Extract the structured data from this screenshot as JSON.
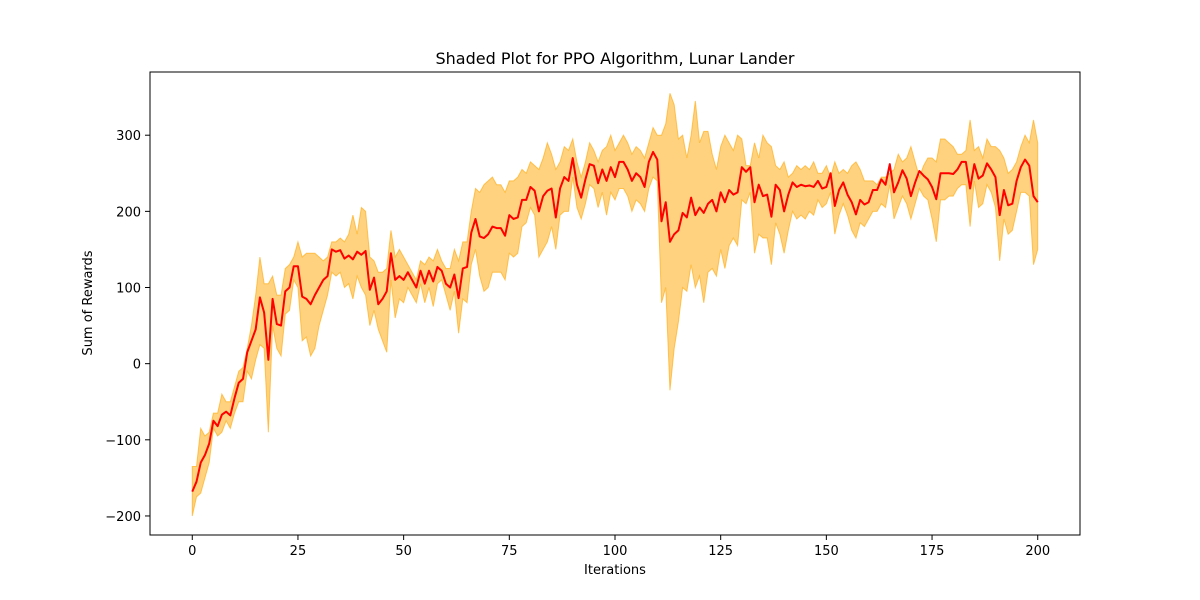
{
  "chart_data": {
    "type": "line",
    "title": "Shaded Plot for PPO Algorithm, Lunar Lander",
    "xlabel": "Iterations",
    "ylabel": "Sum of Rewards",
    "xlim": [
      -10,
      210
    ],
    "ylim": [
      -225,
      383
    ],
    "xticks": [
      0,
      25,
      50,
      75,
      100,
      125,
      150,
      175,
      200
    ],
    "yticks": [
      -200,
      -100,
      0,
      100,
      200,
      300
    ],
    "xtick_labels": [
      "0",
      "25",
      "50",
      "75",
      "100",
      "125",
      "150",
      "175",
      "200"
    ],
    "ytick_labels": [
      "−200",
      "−100",
      "0",
      "100",
      "200",
      "300"
    ],
    "grid": false,
    "colors": {
      "line": "#ff0000",
      "band": "#ffa500",
      "band_opacity": 0.5,
      "frame": "#000000"
    },
    "series": [
      {
        "kind": "mean",
        "x_start": 0,
        "x_step": 1,
        "values": [
          -168,
          -155,
          -130,
          -120,
          -105,
          -75,
          -82,
          -67,
          -63,
          -68,
          -45,
          -25,
          -20,
          15,
          30,
          45,
          87,
          67,
          5,
          85,
          52,
          50,
          95,
          100,
          128,
          128,
          88,
          85,
          78,
          90,
          100,
          110,
          115,
          150,
          147,
          149,
          138,
          142,
          137,
          147,
          143,
          148,
          97,
          113,
          78,
          85,
          95,
          145,
          110,
          115,
          110,
          120,
          110,
          100,
          122,
          105,
          122,
          108,
          127,
          122,
          105,
          100,
          117,
          86,
          125,
          127,
          172,
          190,
          167,
          165,
          170,
          180,
          178,
          178,
          168,
          195,
          190,
          192,
          215,
          215,
          232,
          227,
          200,
          220,
          227,
          230,
          192,
          230,
          245,
          240,
          270,
          235,
          218,
          242,
          262,
          260,
          237,
          255,
          240,
          258,
          245,
          265,
          265,
          255,
          240,
          250,
          245,
          232,
          265,
          278,
          268,
          187,
          212,
          160,
          170,
          175,
          198,
          192,
          218,
          195,
          205,
          198,
          210,
          215,
          200,
          225,
          212,
          228,
          222,
          225,
          258,
          252,
          258,
          212,
          235,
          220,
          222,
          193,
          235,
          228,
          200,
          222,
          238,
          232,
          235,
          233,
          234,
          232,
          240,
          230,
          232,
          250,
          207,
          228,
          238,
          222,
          212,
          196,
          215,
          209,
          212,
          228,
          228,
          242,
          235,
          262,
          225,
          238,
          254,
          243,
          220,
          238,
          253,
          247,
          242,
          232,
          216,
          250,
          250,
          250,
          249,
          255,
          265,
          265,
          230,
          262,
          243,
          247,
          263,
          255,
          245,
          195,
          228,
          208,
          210,
          240,
          258,
          268,
          260,
          220,
          212
        ]
      },
      {
        "kind": "upper",
        "x_start": 0,
        "x_step": 1,
        "values": [
          -135,
          -135,
          -85,
          -95,
          -90,
          -65,
          -65,
          -40,
          -50,
          -50,
          -30,
          -10,
          -5,
          20,
          50,
          90,
          140,
          105,
          105,
          115,
          90,
          90,
          125,
          130,
          140,
          160,
          140,
          145,
          145,
          145,
          140,
          135,
          140,
          160,
          160,
          165,
          160,
          170,
          195,
          170,
          205,
          200,
          140,
          135,
          120,
          120,
          125,
          175,
          140,
          150,
          140,
          130,
          120,
          110,
          135,
          130,
          140,
          135,
          150,
          135,
          125,
          125,
          150,
          135,
          160,
          160,
          200,
          230,
          225,
          235,
          240,
          245,
          235,
          235,
          225,
          240,
          240,
          245,
          255,
          250,
          265,
          260,
          255,
          270,
          290,
          275,
          255,
          265,
          285,
          280,
          295,
          265,
          245,
          265,
          290,
          280,
          265,
          280,
          285,
          300,
          280,
          290,
          300,
          290,
          275,
          285,
          280,
          270,
          290,
          310,
          300,
          300,
          315,
          355,
          340,
          295,
          300,
          270,
          300,
          345,
          290,
          305,
          305,
          275,
          255,
          285,
          300,
          290,
          280,
          300,
          295,
          260,
          260,
          290,
          270,
          300,
          290,
          285,
          260,
          255,
          265,
          245,
          250,
          260,
          255,
          260,
          255,
          265,
          250,
          250,
          260,
          245,
          265,
          250,
          255,
          250,
          260,
          265,
          255,
          240,
          240,
          240,
          235,
          245,
          245,
          250,
          255,
          275,
          265,
          270,
          285,
          265,
          245,
          260,
          270,
          270,
          265,
          295,
          295,
          290,
          285,
          275,
          275,
          280,
          320,
          280,
          285,
          270,
          295,
          285,
          285,
          280,
          270,
          250,
          255,
          265,
          285,
          300,
          290,
          320,
          290
        ]
      },
      {
        "kind": "lower",
        "x_start": 0,
        "x_step": 1,
        "values": [
          -200,
          -175,
          -170,
          -150,
          -130,
          -85,
          -95,
          -90,
          -75,
          -85,
          -65,
          -50,
          -50,
          -10,
          -20,
          5,
          25,
          20,
          -90,
          50,
          20,
          10,
          65,
          70,
          110,
          100,
          30,
          35,
          10,
          20,
          50,
          70,
          90,
          120,
          115,
          120,
          100,
          105,
          85,
          115,
          100,
          90,
          50,
          70,
          45,
          30,
          15,
          110,
          60,
          85,
          80,
          100,
          90,
          80,
          105,
          80,
          100,
          75,
          105,
          110,
          90,
          70,
          95,
          40,
          85,
          80,
          130,
          150,
          115,
          95,
          100,
          120,
          120,
          120,
          110,
          145,
          140,
          145,
          180,
          185,
          205,
          195,
          140,
          150,
          160,
          180,
          150,
          195,
          200,
          200,
          245,
          205,
          190,
          210,
          235,
          230,
          205,
          225,
          195,
          225,
          215,
          230,
          230,
          220,
          200,
          215,
          210,
          200,
          230,
          245,
          240,
          80,
          100,
          -35,
          20,
          55,
          100,
          95,
          130,
          100,
          115,
          80,
          120,
          125,
          115,
          150,
          125,
          155,
          165,
          155,
          215,
          210,
          225,
          145,
          170,
          165,
          165,
          130,
          185,
          170,
          145,
          175,
          200,
          190,
          195,
          190,
          200,
          195,
          215,
          205,
          210,
          225,
          170,
          195,
          210,
          195,
          175,
          165,
          185,
          180,
          190,
          200,
          200,
          210,
          205,
          235,
          190,
          205,
          220,
          210,
          190,
          210,
          230,
          220,
          215,
          190,
          160,
          215,
          215,
          220,
          220,
          230,
          235,
          235,
          180,
          240,
          205,
          210,
          235,
          225,
          205,
          135,
          190,
          170,
          175,
          200,
          225,
          225,
          220,
          130,
          150
        ]
      }
    ]
  }
}
